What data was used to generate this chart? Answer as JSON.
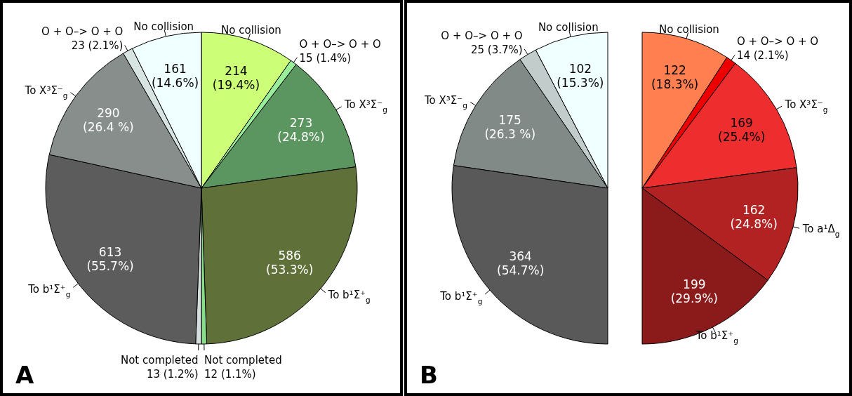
{
  "chart_data": [
    {
      "type": "pie",
      "title": "A",
      "categories": [
        "No collision",
        "O + O–> O + O",
        "To X³Σ⁻$_{g}$",
        "To b¹Σ⁺$_{g}$",
        "Not completed",
        "Not completed",
        "To b¹Σ⁺$_{g}$",
        "To X³Σ⁻$_{g}$",
        "O + O–> O + O",
        "No collision"
      ],
      "values": [
        214,
        15,
        273,
        586,
        12,
        13,
        613,
        290,
        23,
        161
      ],
      "colors": [
        "#ccff77",
        "#99ee99",
        "#5b9660",
        "#5f7139",
        "#88dd88",
        "#d5dfdf",
        "#5c5c5c",
        "#878e8b",
        "#d8e4e2",
        "#f0ffff"
      ],
      "value_labels": [
        "214 (19.4%)",
        "15 (1.4%)",
        "273 (24.8%)",
        "586 (53.3%)",
        "12 (1.1%)",
        "13 (1.2%)",
        "613 (55.7%)",
        "290 (26.4 %)",
        "23 (2.1%)",
        "161 (14.6%)"
      ]
    },
    {
      "type": "pie",
      "title": "B",
      "categories": [
        "No collision",
        "O + O–> O + O",
        "To X³Σ⁻$_{g}$",
        "To b¹Σ⁺$_{g}$"
      ],
      "values": [
        102,
        25,
        175,
        364
      ],
      "colors": [
        "#f0ffff",
        "#c2cccb",
        "#828a88",
        "#595959"
      ],
      "value_labels": [
        "102 (15.3%)",
        "25 (3.7%)",
        "175 (26.3 %)",
        "364 (54.7%)"
      ]
    },
    {
      "type": "pie",
      "categories": [
        "No collision",
        "O + O–> O + O",
        "To X³Σ⁻$_{g}$",
        "To a¹Δ$_{g}$",
        "To b¹Σ⁺$_{g}$"
      ],
      "values": [
        122,
        14,
        169,
        162,
        199
      ],
      "colors": [
        "#ff7f50",
        "#ee0000",
        "#ee2e2e",
        "#b22222",
        "#8b1a1a"
      ],
      "value_labels": [
        "122 (18.3%)",
        "14 (2.1%)",
        "169 (25.4%)",
        "162 (24.8%)",
        "199 (29.9%)"
      ]
    }
  ]
}
